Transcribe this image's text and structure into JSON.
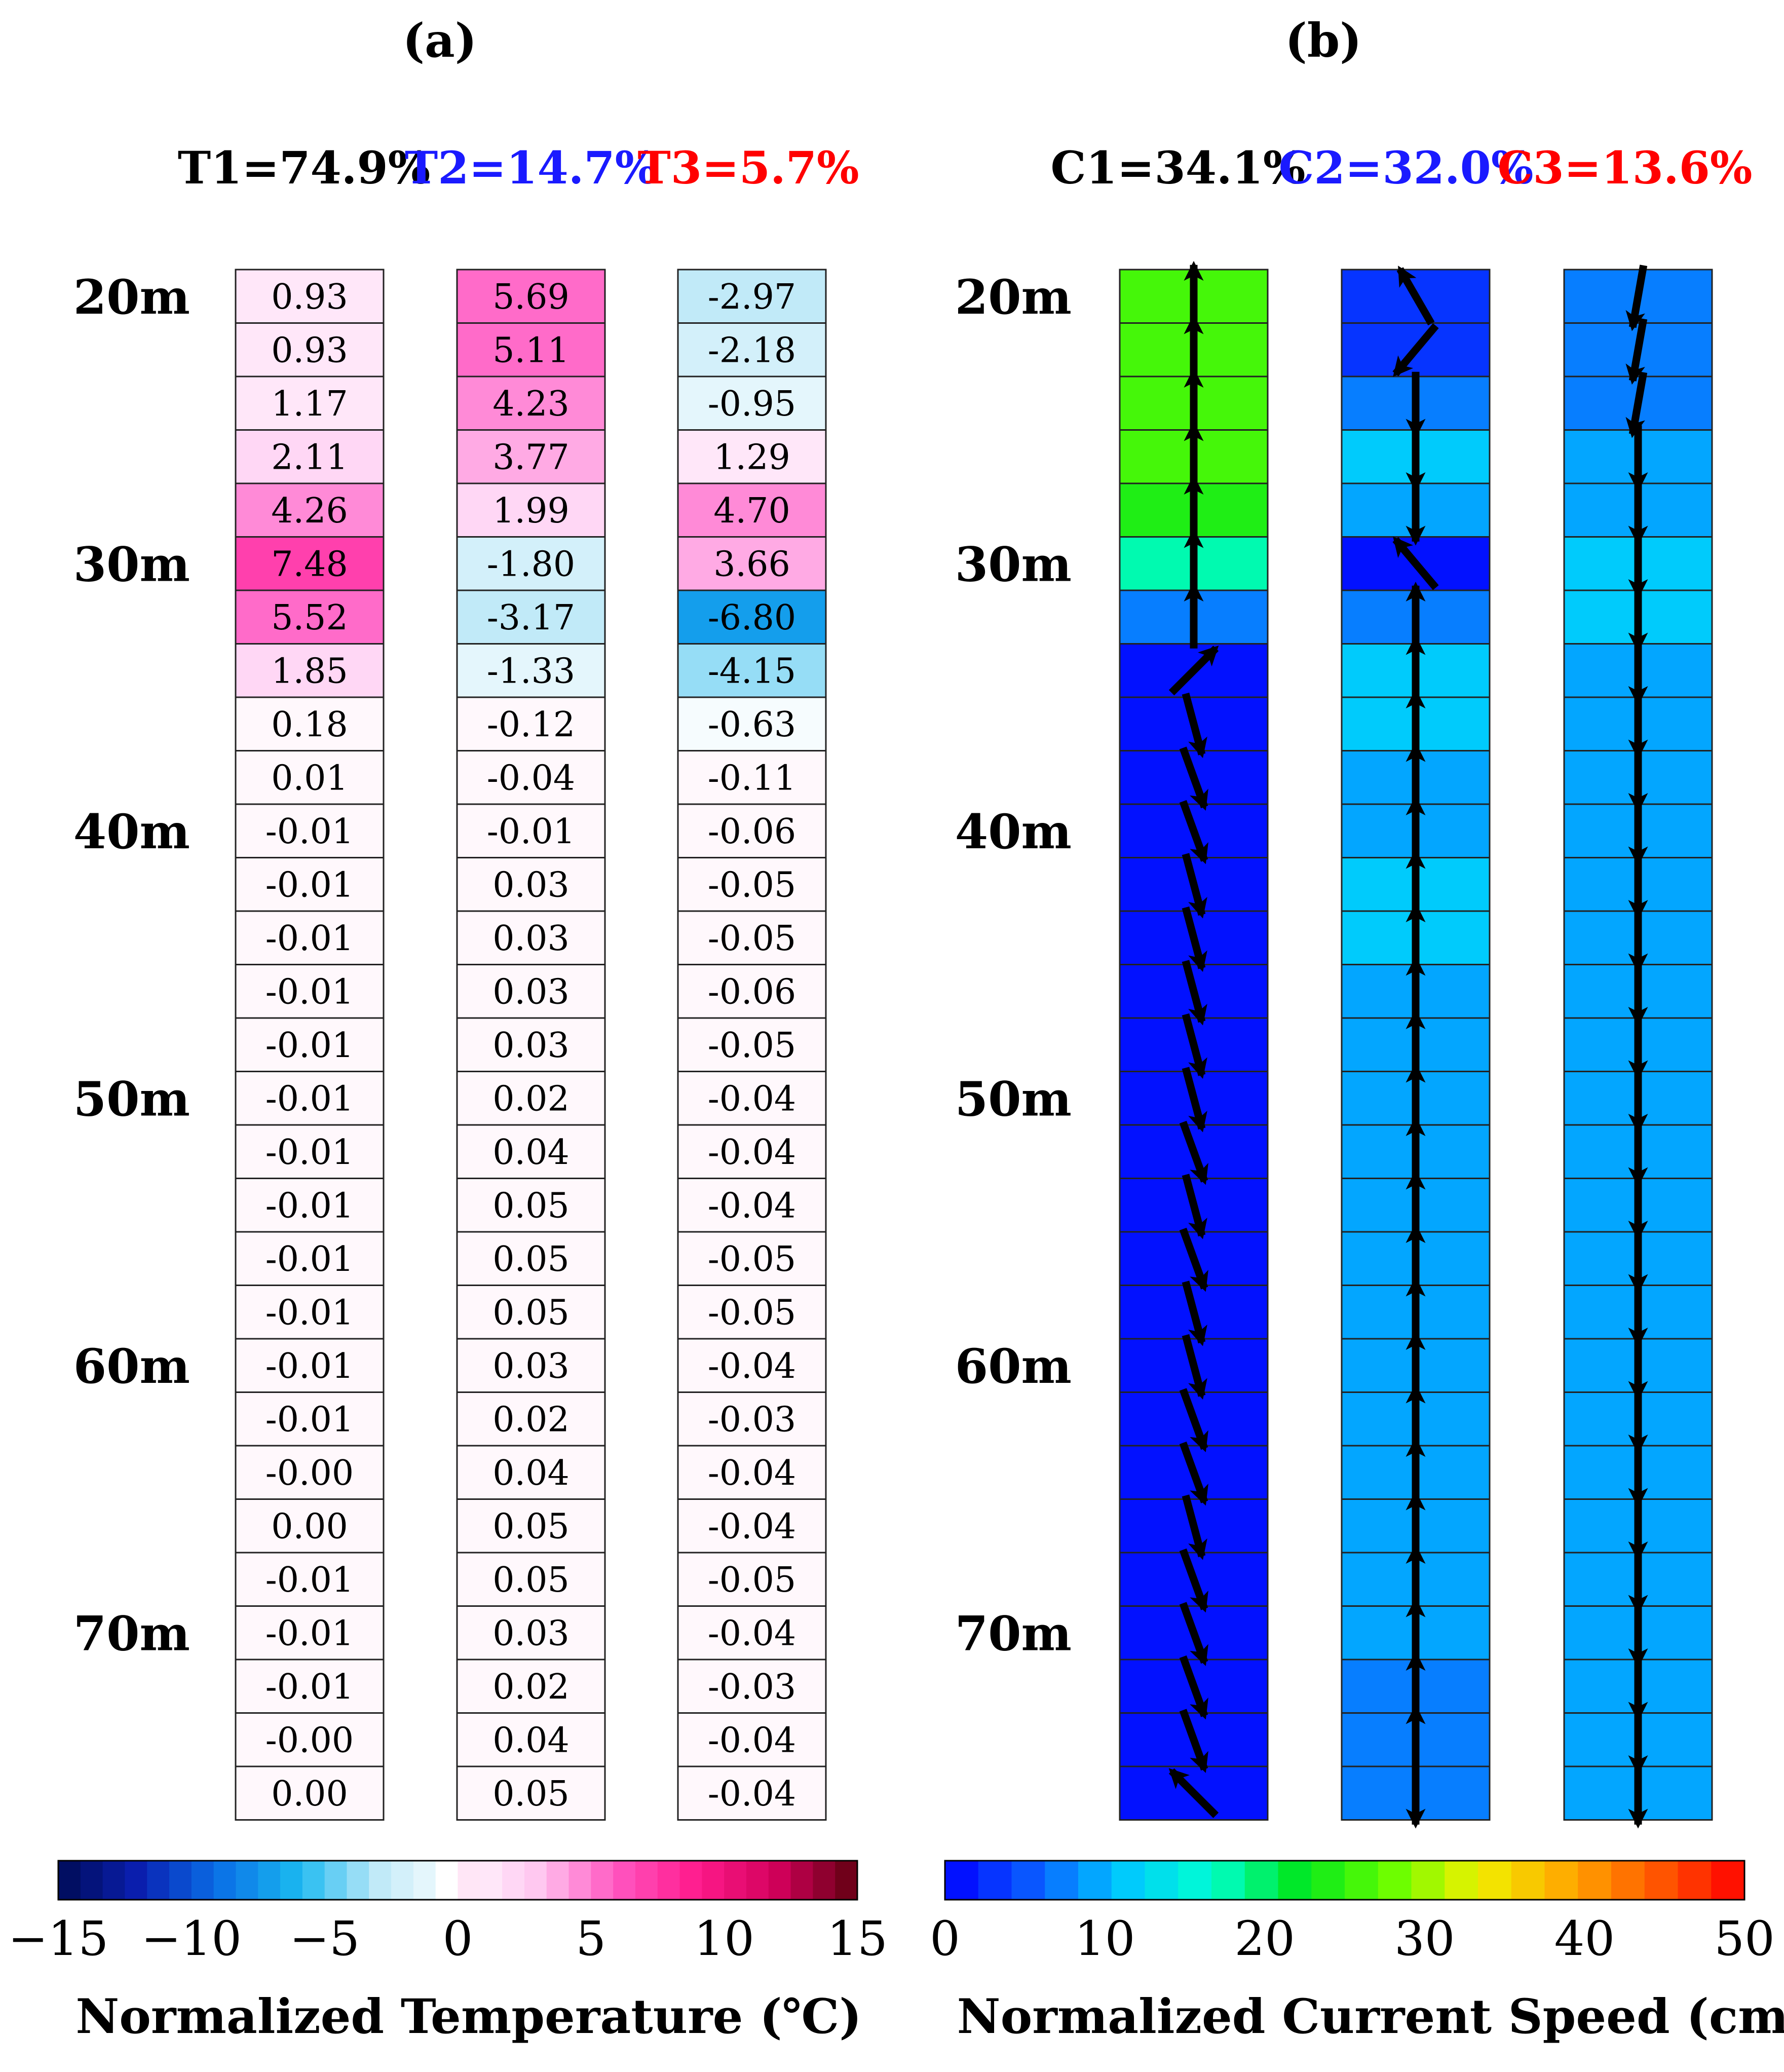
{
  "chart_data": [
    {
      "type": "heatmap",
      "panel_label": "(a)",
      "depth_labels": [
        "20m",
        "30m",
        "40m",
        "50m",
        "60m",
        "70m"
      ],
      "depth_label_rows": [
        0,
        5,
        10,
        15,
        20,
        25
      ],
      "columns": [
        {
          "title": "T1=74.9%",
          "title_color": "#000000",
          "values": [
            0.93,
            0.93,
            1.17,
            2.11,
            4.26,
            7.48,
            5.52,
            1.85,
            0.18,
            0.01,
            -0.01,
            -0.01,
            -0.01,
            -0.01,
            -0.01,
            -0.01,
            -0.01,
            -0.01,
            -0.01,
            -0.01,
            -0.01,
            -0.01,
            -0.0,
            0.0,
            -0.01,
            -0.01,
            -0.01,
            -0.0,
            0.0
          ],
          "labels": [
            "0.93",
            "0.93",
            "1.17",
            "2.11",
            "4.26",
            "7.48",
            "5.52",
            "1.85",
            "0.18",
            "0.01",
            "-0.01",
            "-0.01",
            "-0.01",
            "-0.01",
            "-0.01",
            "-0.01",
            "-0.01",
            "-0.01",
            "-0.01",
            "-0.01",
            "-0.01",
            "-0.01",
            "-0.00",
            "0.00",
            "-0.01",
            "-0.01",
            "-0.01",
            "-0.00",
            "0.00"
          ]
        },
        {
          "title": "T2=14.7%",
          "title_color": "#1a1aff",
          "values": [
            5.69,
            5.11,
            4.23,
            3.77,
            1.99,
            -1.8,
            -3.17,
            -1.33,
            -0.12,
            -0.04,
            -0.01,
            0.03,
            0.03,
            0.03,
            0.03,
            0.02,
            0.04,
            0.05,
            0.05,
            0.05,
            0.03,
            0.02,
            0.04,
            0.05,
            0.05,
            0.03,
            0.02,
            0.04,
            0.05
          ],
          "labels": [
            "5.69",
            "5.11",
            "4.23",
            "3.77",
            "1.99",
            "-1.80",
            "-3.17",
            "-1.33",
            "-0.12",
            "-0.04",
            "-0.01",
            "0.03",
            "0.03",
            "0.03",
            "0.03",
            "0.02",
            "0.04",
            "0.05",
            "0.05",
            "0.05",
            "0.03",
            "0.02",
            "0.04",
            "0.05",
            "0.05",
            "0.03",
            "0.02",
            "0.04",
            "0.05"
          ]
        },
        {
          "title": "T3=5.7%",
          "title_color": "#ff0000",
          "values": [
            -2.97,
            -2.18,
            -0.95,
            1.29,
            4.7,
            3.66,
            -6.8,
            -4.15,
            -0.63,
            -0.11,
            -0.06,
            -0.05,
            -0.05,
            -0.06,
            -0.05,
            -0.04,
            -0.04,
            -0.04,
            -0.05,
            -0.05,
            -0.04,
            -0.03,
            -0.04,
            -0.04,
            -0.05,
            -0.04,
            -0.03,
            -0.04,
            -0.04
          ],
          "labels": [
            "-2.97",
            "-2.18",
            "-0.95",
            "1.29",
            "4.70",
            "3.66",
            "-6.80",
            "-4.15",
            "-0.63",
            "-0.11",
            "-0.06",
            "-0.05",
            "-0.05",
            "-0.06",
            "-0.05",
            "-0.04",
            "-0.04",
            "-0.04",
            "-0.05",
            "-0.05",
            "-0.04",
            "-0.03",
            "-0.04",
            "-0.04",
            "-0.05",
            "-0.04",
            "-0.03",
            "-0.04",
            "-0.04"
          ]
        }
      ],
      "colorbar": {
        "range": [
          -15,
          15
        ],
        "ticks": [
          "−15",
          "−10",
          "−5",
          "0",
          "5",
          "10",
          "15"
        ],
        "tick_values": [
          -15,
          -10,
          -5,
          0,
          5,
          10,
          15
        ],
        "label": "Normalized Temperature (℃)",
        "colormap": "blue-white-magenta",
        "cmap_stops": [
          "#000b55",
          "#0a1fb0",
          "#0a6fe6",
          "#1ab8f0",
          "#bfe9f8",
          "#ffffff",
          "#ffc6f0",
          "#ff55c0",
          "#ff1a8c",
          "#d1005a",
          "#600010"
        ]
      }
    },
    {
      "type": "heatmap",
      "panel_label": "(b)",
      "depth_labels": [
        "20m",
        "30m",
        "40m",
        "50m",
        "60m",
        "70m"
      ],
      "depth_label_rows": [
        0,
        5,
        10,
        15,
        20,
        25
      ],
      "columns": [
        {
          "title": "C1=34.1%",
          "title_color": "#000000",
          "speeds": [
            26,
            26,
            27,
            25,
            24,
            18,
            8,
            2,
            2,
            2,
            2,
            2,
            2,
            2,
            2,
            2,
            2,
            2,
            2,
            2,
            2,
            2,
            2,
            2,
            2,
            2,
            2,
            2,
            2
          ],
          "arrow_dir_deg": [
            0,
            0,
            0,
            0,
            0,
            0,
            0,
            45,
            165,
            160,
            160,
            165,
            165,
            165,
            165,
            165,
            160,
            165,
            160,
            165,
            165,
            160,
            160,
            165,
            160,
            160,
            160,
            160,
            -45
          ]
        },
        {
          "title": "C2=32.0%",
          "title_color": "#1a1aff",
          "speeds": [
            4,
            4,
            8,
            12,
            9,
            1,
            8,
            11,
            11,
            10,
            10,
            11,
            11,
            10,
            10,
            10,
            10,
            9,
            10,
            10,
            10,
            9,
            9,
            9,
            9,
            9,
            8,
            8,
            8
          ],
          "arrow_dir_deg": [
            -30,
            -140,
            180,
            180,
            180,
            -40,
            0,
            0,
            0,
            0,
            0,
            0,
            0,
            0,
            0,
            0,
            0,
            0,
            0,
            0,
            0,
            0,
            0,
            0,
            0,
            0,
            0,
            0,
            180
          ]
        },
        {
          "title": "C3=13.6%",
          "title_color": "#ff0000",
          "speeds": [
            7,
            8,
            8,
            9,
            10,
            11,
            11,
            10,
            10,
            10,
            10,
            10,
            10,
            10,
            9,
            9,
            9,
            9,
            9,
            9,
            9,
            9,
            9,
            9,
            9,
            9,
            9,
            9,
            9
          ],
          "arrow_dir_deg": [
            190,
            190,
            190,
            180,
            180,
            180,
            180,
            180,
            180,
            180,
            180,
            180,
            180,
            180,
            180,
            180,
            180,
            180,
            180,
            180,
            180,
            180,
            180,
            180,
            180,
            180,
            180,
            180,
            180
          ]
        }
      ],
      "colorbar": {
        "range": [
          0,
          50
        ],
        "ticks": [
          "0",
          "10",
          "20",
          "30",
          "40",
          "50"
        ],
        "tick_values": [
          0,
          10,
          20,
          30,
          40,
          50
        ],
        "label": "Normalized Current Speed (cm/s)",
        "colormap": "rainbow",
        "cmap_stops": [
          "#0000ff",
          "#0a5cff",
          "#00c8ff",
          "#00ffd2",
          "#00e61e",
          "#64ff00",
          "#f0f000",
          "#ffaa00",
          "#ff5a00",
          "#ff0000"
        ]
      }
    }
  ]
}
